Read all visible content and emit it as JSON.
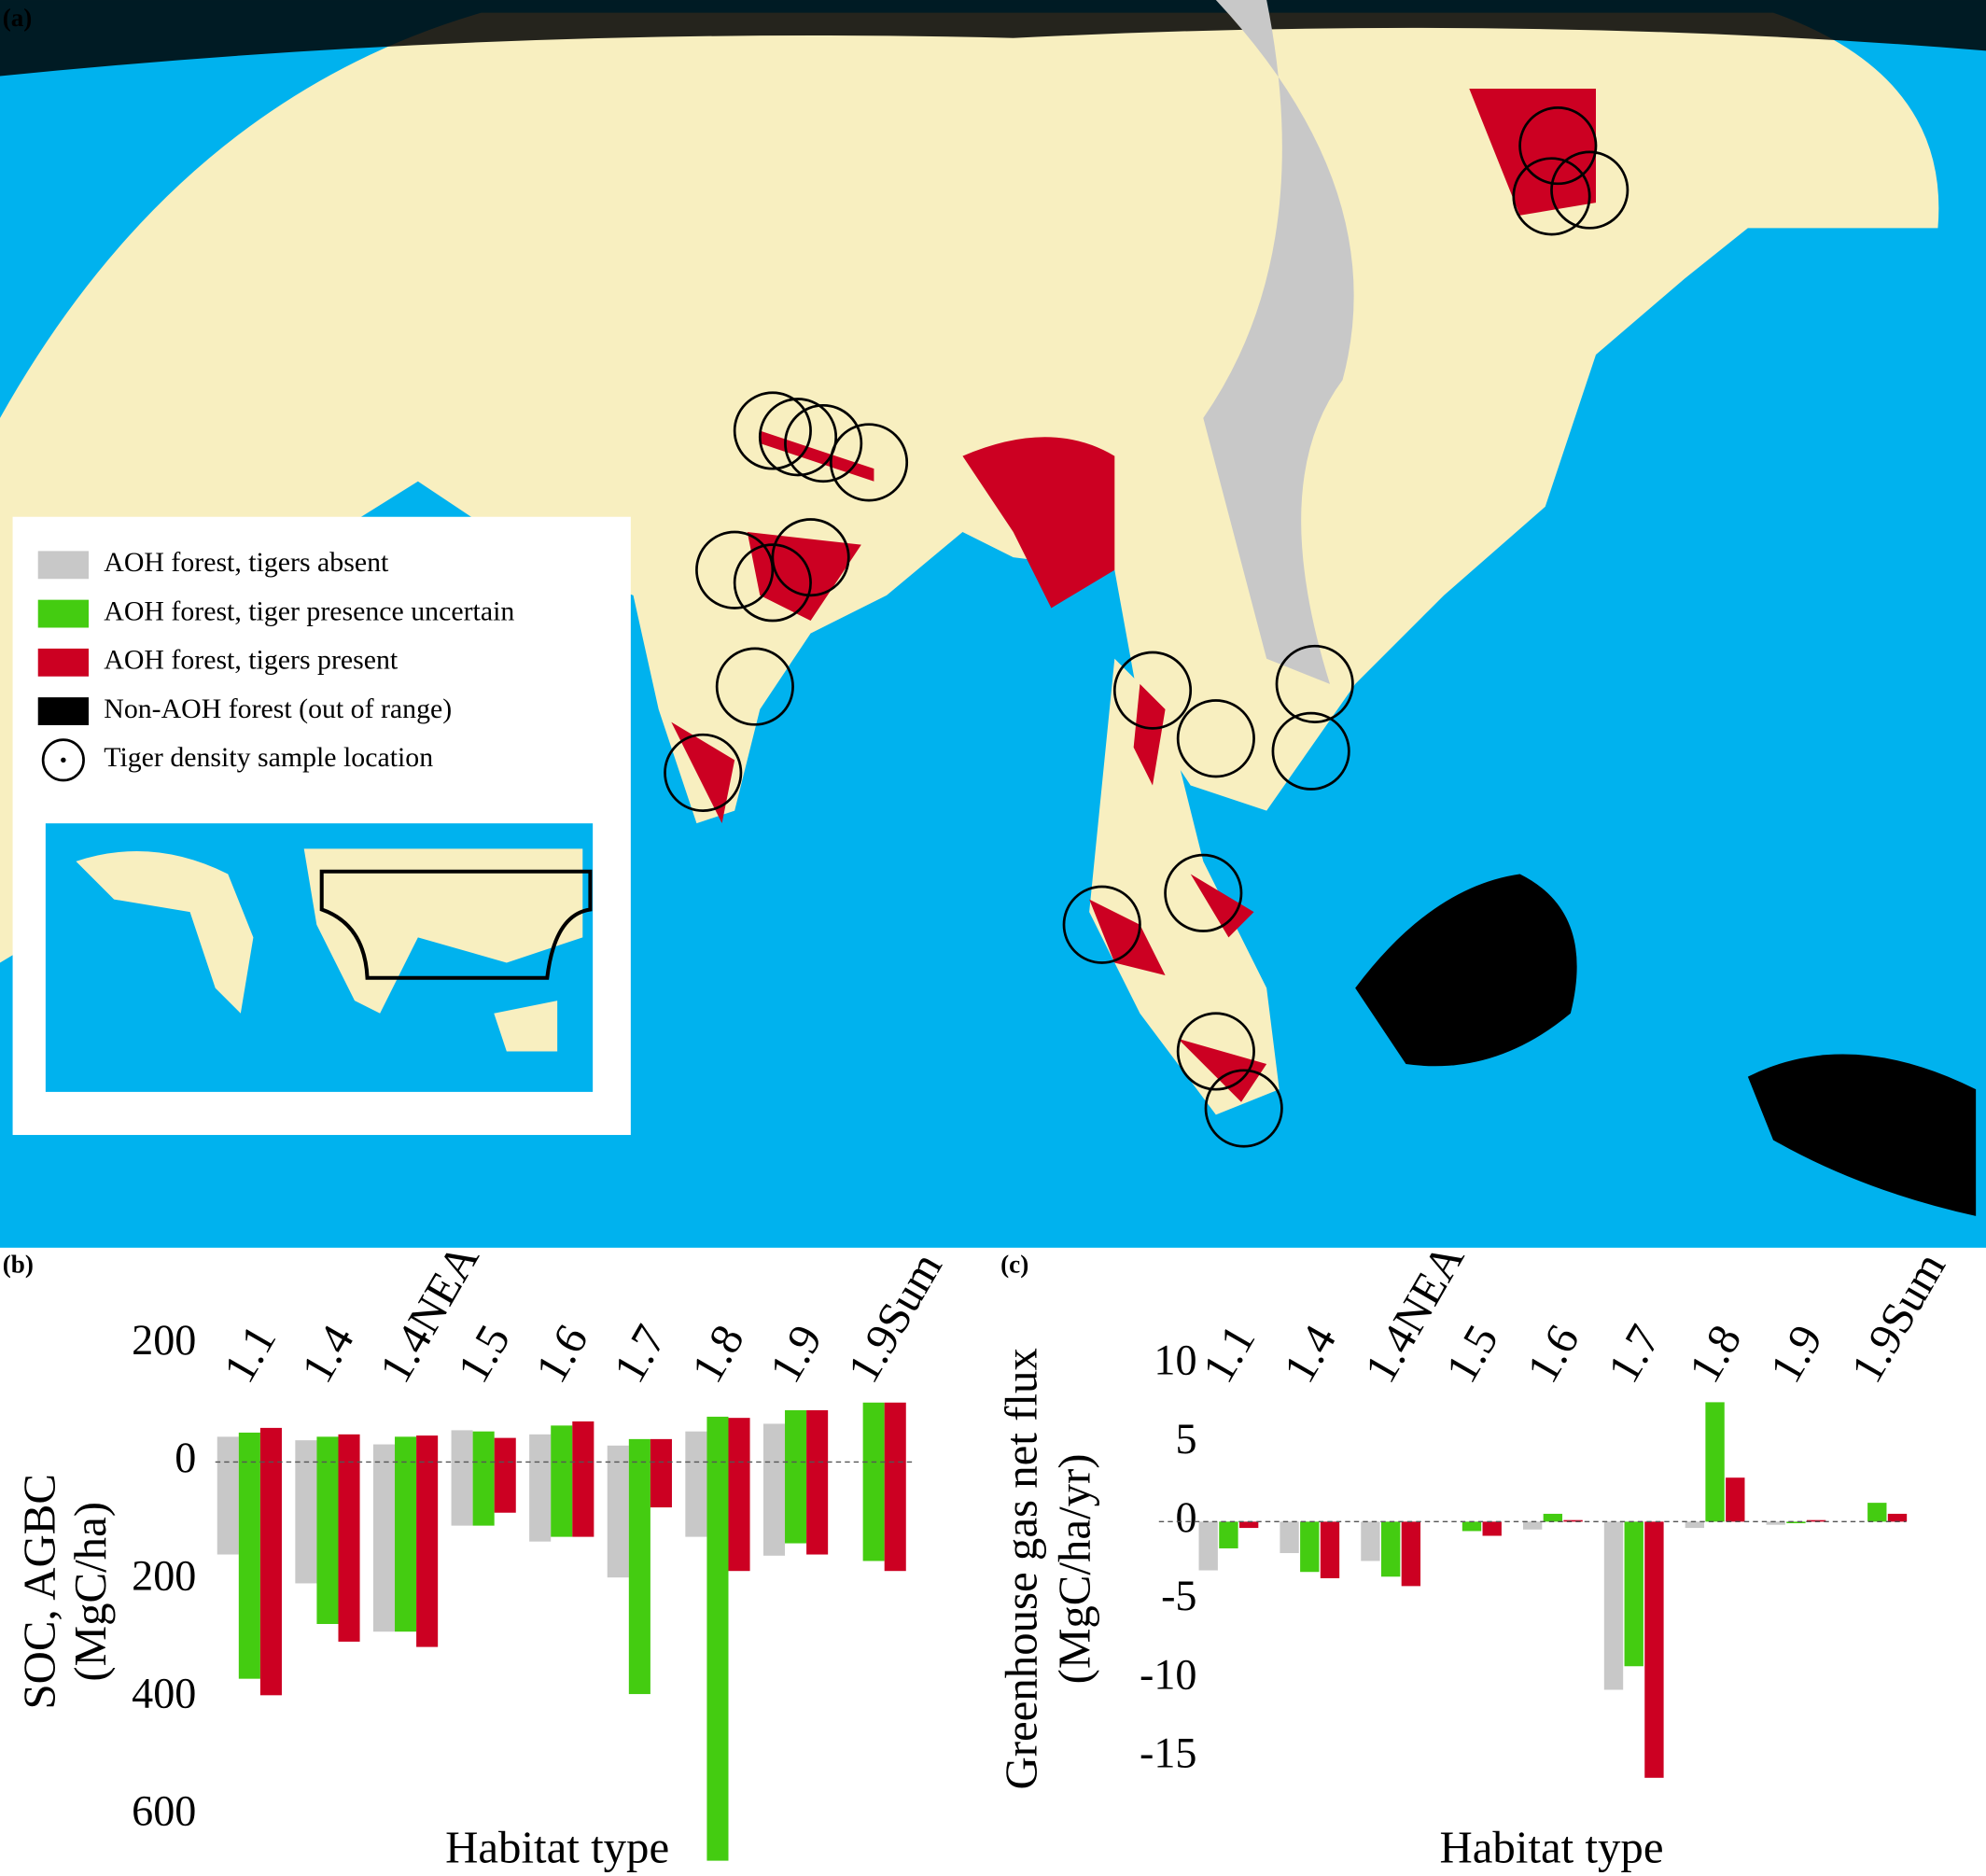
{
  "map": {
    "panel": "(a)",
    "legend": [
      {
        "label": "AOH forest, tigers absent",
        "color": "#c8c8c8"
      },
      {
        "label": "AOH forest, tiger presence uncertain",
        "color": "#44cc11"
      },
      {
        "label": "AOH forest, tigers present",
        "color": "#cc0022"
      },
      {
        "label": "Non-AOH forest (out of range)",
        "color": "#000000"
      },
      {
        "label": "Tiger density sample location"
      }
    ]
  },
  "chart_data": [
    {
      "type": "bar",
      "panel": "(b)",
      "ylabel": [
        "SOC, AGBC",
        "(MgC/ha)"
      ],
      "xlabel": "Habitat type",
      "categories": [
        "1.1",
        "1.4",
        "1.4NEA",
        "1.5",
        "1.6",
        "1.7",
        "1.8",
        "1.9",
        "1.9Sum"
      ],
      "series": [
        {
          "color": "#c8c8c8",
          "values": [
            43,
            37,
            30,
            54,
            47,
            28,
            52,
            65,
            null
          ],
          "values_below": [
            -157,
            -206,
            -288,
            -108,
            -135,
            -196,
            -127,
            -159,
            null
          ]
        },
        {
          "color": "#44cc11",
          "values": [
            50,
            43,
            43,
            52,
            62,
            39,
            77,
            88,
            101
          ],
          "values_below": [
            -368,
            -275,
            -288,
            -108,
            -127,
            -394,
            -677,
            -138,
            -168
          ]
        },
        {
          "color": "#cc0022",
          "values": [
            58,
            47,
            45,
            41,
            69,
            39,
            75,
            88,
            101
          ],
          "values_below": [
            -396,
            -305,
            -314,
            -86,
            -127,
            -77,
            -185,
            -157,
            -185
          ]
        }
      ],
      "ylim": [
        -690,
        250
      ],
      "yticks": [
        200,
        0,
        {
          "value": -200,
          "label": "200"
        },
        {
          "value": -400,
          "label": "400"
        },
        {
          "value": -600,
          "label": "600"
        }
      ]
    },
    {
      "type": "bar",
      "panel": "(c)",
      "ylabel": [
        "Greenhouse gas net flux",
        "(MgC/ha/yr)"
      ],
      "xlabel": "Habitat type",
      "categories": [
        "1.1",
        "1.4",
        "1.4NEA",
        "1.5",
        "1.6",
        "1.7",
        "1.8",
        "1.9",
        "1.9Sum"
      ],
      "series": [
        {
          "color": "#c8c8c8",
          "values": [
            -3.1,
            -2.0,
            -2.5,
            0,
            -0.5,
            -10.7,
            -0.4,
            -0.2,
            null
          ]
        },
        {
          "color": "#44cc11",
          "values": [
            -1.7,
            -3.2,
            -3.5,
            -0.6,
            0.5,
            -9.2,
            7.6,
            -0.1,
            1.2
          ]
        },
        {
          "color": "#cc0022",
          "values": [
            -0.4,
            -3.6,
            -4.1,
            -0.9,
            0.1,
            -16.3,
            2.8,
            0.1,
            0.5
          ]
        }
      ],
      "ylim": [
        -19,
        13
      ],
      "yticks": [
        10,
        5,
        0,
        -5,
        -10,
        -15
      ]
    }
  ]
}
